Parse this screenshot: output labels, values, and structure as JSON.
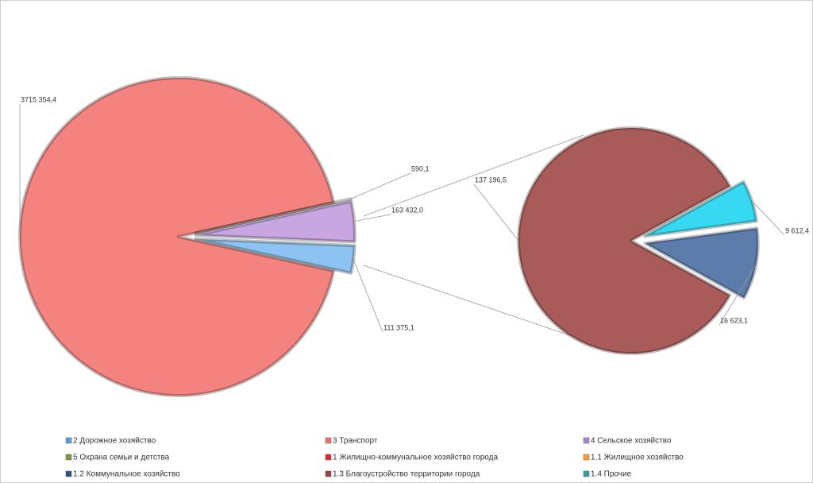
{
  "chart_data": [
    {
      "type": "pie",
      "values": [
        3715354.4,
        590.1,
        163432.0,
        111375.1
      ],
      "value_labels": [
        "3715 354,4",
        "590,1",
        "163 432,0",
        "111 375,1"
      ],
      "colors": [
        "#f4837f",
        "#f3e2f6",
        "#c7a6e2",
        "#8cc3f2"
      ]
    },
    {
      "type": "pie",
      "values": [
        137196.5,
        9612.4,
        16623.1
      ],
      "value_labels": [
        "137 196,5",
        "9 612,4",
        "16 623,1"
      ],
      "colors": [
        "#a95b59",
        "#36d8f2",
        "#5c7cab"
      ]
    }
  ],
  "legend": [
    {
      "label": "2 Дорожное хозяйство",
      "color": "#5b9bd5"
    },
    {
      "label": "3 Транспорт",
      "color": "#e9726e"
    },
    {
      "label": "4 Сельское хозяйство",
      "color": "#a885cc"
    },
    {
      "label": "5 Охрана семьи и детства",
      "color": "#7a9a3a"
    },
    {
      "label": "1 Жилищно-коммунальное  хозяйство города",
      "color": "#e02828"
    },
    {
      "label": "1.1 Жилищное хозяйство",
      "color": "#f0a040"
    },
    {
      "label": "1.2 Коммунальное хозяйство",
      "color": "#2f4f7f"
    },
    {
      "label": "1.3 Благоустройство территории города",
      "color": "#9a4040"
    },
    {
      "label": "1.4 Прочие",
      "color": "#2fa0a0"
    }
  ]
}
